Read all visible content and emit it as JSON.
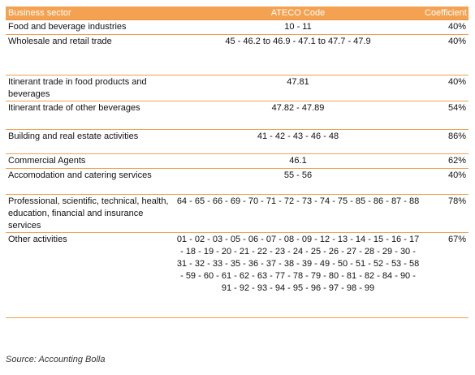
{
  "table": {
    "headers": {
      "sector": "Business sector",
      "ateco": "ATECO Code",
      "coefficient": "Coefficient"
    },
    "rows": [
      {
        "sector": "Food and beverage industries",
        "ateco": "10 - 11",
        "coefficient": "40%"
      },
      {
        "sector": "Wholesale and retail trade",
        "ateco": "45 - 46.2 to 46.9 - 47.1 to 47.7 - 47.9",
        "coefficient": "40%"
      },
      {
        "sector": "Itinerant trade in food products and beverages",
        "ateco": "47.81",
        "coefficient": "40%"
      },
      {
        "sector": "Itinerant trade of other beverages",
        "ateco": "47.82 - 47.89",
        "coefficient": "54%"
      },
      {
        "sector": "Building and real estate activities",
        "ateco": "41 - 42 - 43 - 46 - 48",
        "coefficient": "86%"
      },
      {
        "sector": "Commercial Agents",
        "ateco": "46.1",
        "coefficient": "62%"
      },
      {
        "sector": "Accomodation and catering services",
        "ateco": "55 - 56",
        "coefficient": "40%"
      },
      {
        "sector": "Professional, scientific, technical, health, education, financial and insurance services",
        "ateco": "64 - 65 - 66 - 69 - 70 - 71 - 72 - 73 - 74 - 75 - 85 - 86 - 87 - 88",
        "coefficient": "78%"
      },
      {
        "sector": "Other activities",
        "ateco": "01 - 02 - 03 - 05 - 06 - 07 - 08 - 09 - 12 - 13 - 14 - 15 - 16 - 17 - 18 - 19 - 20 - 21 - 22 - 23 - 24 - 25 - 26 - 27 - 28 - 29 - 30 - 31 - 32 - 33 - 35 - 36 - 37 - 38 - 39 - 49 - 50 - 51 - 52 - 53 - 58 - 59 - 60 - 61 - 62 - 63 - 77 - 78 - 79 - 80 - 81 - 82 - 84 - 90 - 91 - 92 - 93 - 94 - 95 - 96 - 97 - 98 - 99",
        "coefficient": "67%"
      }
    ]
  },
  "source": "Source: Accounting Bolla",
  "colors": {
    "header_bg": "#f4a252",
    "header_text": "#ffffff",
    "row_border": "#f0a04e"
  }
}
